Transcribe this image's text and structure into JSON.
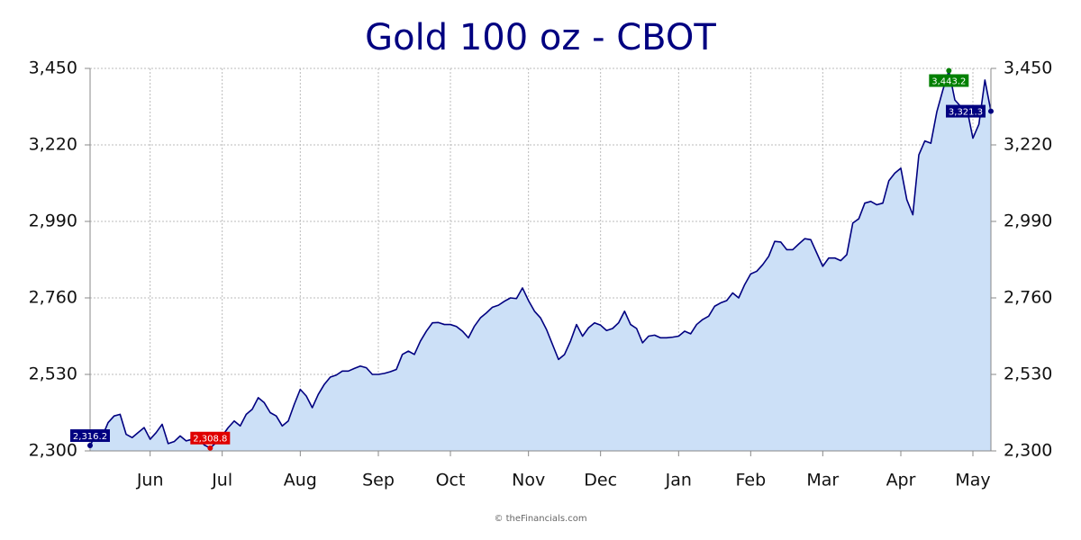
{
  "chart_data": {
    "type": "area",
    "title": "Gold 100 oz - CBOT",
    "source": "© theFinancials.com",
    "categories": [
      null,
      null,
      null,
      null,
      null,
      null,
      null,
      null,
      null,
      null,
      "Jun",
      null,
      null,
      null,
      null,
      null,
      null,
      null,
      null,
      null,
      null,
      null,
      "Jul",
      null,
      null,
      null,
      null,
      null,
      null,
      null,
      null,
      null,
      null,
      null,
      null,
      "Aug",
      null,
      null,
      null,
      null,
      null,
      null,
      null,
      null,
      null,
      null,
      null,
      null,
      "Sep",
      null,
      null,
      null,
      null,
      null,
      null,
      null,
      null,
      null,
      null,
      null,
      "Oct",
      null,
      null,
      null,
      null,
      null,
      null,
      null,
      null,
      null,
      null,
      null,
      null,
      "Nov",
      null,
      null,
      null,
      null,
      null,
      null,
      null,
      null,
      null,
      null,
      null,
      "Dec",
      null,
      null,
      null,
      null,
      null,
      null,
      null,
      null,
      null,
      null,
      null,
      null,
      "Jan",
      null,
      null,
      null,
      null,
      null,
      null,
      null,
      null,
      null,
      null,
      null,
      "Feb",
      null,
      null,
      null,
      null,
      null,
      null,
      null,
      null,
      null,
      null,
      null,
      "Mar",
      null,
      null,
      null,
      null,
      null,
      null,
      null,
      null,
      null,
      null,
      null,
      null,
      "Apr",
      null,
      null,
      null,
      null,
      null,
      null,
      null,
      null,
      null,
      null,
      null,
      "May",
      null,
      null,
      null
    ],
    "values": [
      2316.2,
      2350,
      2342,
      2385,
      2405,
      2410,
      2350,
      2340,
      2355,
      2370,
      2335,
      2355,
      2380,
      2322,
      2328,
      2345,
      2330,
      2335,
      2340,
      2318,
      2308.8,
      2325,
      2345,
      2370,
      2390,
      2375,
      2410,
      2425,
      2460,
      2445,
      2415,
      2405,
      2375,
      2390,
      2440,
      2485,
      2465,
      2430,
      2470,
      2500,
      2522,
      2528,
      2540,
      2540,
      2548,
      2555,
      2550,
      2530,
      2530,
      2533,
      2538,
      2545,
      2590,
      2600,
      2590,
      2630,
      2660,
      2685,
      2686,
      2680,
      2680,
      2674,
      2660,
      2640,
      2675,
      2700,
      2715,
      2732,
      2738,
      2750,
      2760,
      2758,
      2790,
      2752,
      2720,
      2700,
      2665,
      2620,
      2575,
      2590,
      2630,
      2680,
      2645,
      2670,
      2685,
      2678,
      2662,
      2668,
      2685,
      2720,
      2680,
      2668,
      2625,
      2645,
      2648,
      2640,
      2640,
      2642,
      2645,
      2660,
      2652,
      2680,
      2695,
      2705,
      2735,
      2745,
      2752,
      2775,
      2760,
      2800,
      2832,
      2840,
      2860,
      2885,
      2930,
      2928,
      2905,
      2905,
      2922,
      2938,
      2935,
      2895,
      2855,
      2880,
      2880,
      2872,
      2890,
      2985,
      2998,
      3045,
      3050,
      3040,
      3045,
      3112,
      3135,
      3150,
      3055,
      3010,
      3190,
      3232,
      3225,
      3320,
      3385,
      3443.2,
      3355,
      3335,
      3330,
      3240,
      3282,
      3415,
      3321.3
    ],
    "value_labels": [
      "2,316.2",
      null,
      null,
      null,
      null,
      null,
      null,
      null,
      null,
      null,
      null,
      null,
      null,
      null,
      null,
      null,
      null,
      null,
      null,
      null,
      "2,308.8",
      null,
      null,
      null,
      null,
      null,
      null,
      null,
      null,
      null,
      null,
      null,
      null,
      null,
      null,
      null,
      null,
      null,
      null,
      null,
      null,
      null,
      null,
      null,
      null,
      null,
      null,
      null,
      null,
      null,
      null,
      null,
      null,
      null,
      null,
      null,
      null,
      null,
      null,
      null,
      null,
      null,
      null,
      null,
      null,
      null,
      null,
      null,
      null,
      null,
      null,
      null,
      null,
      null,
      null,
      null,
      null,
      null,
      null,
      null,
      null,
      null,
      null,
      null,
      null,
      null,
      null,
      null,
      null,
      null,
      null,
      null,
      null,
      null,
      null,
      null,
      null,
      null,
      null,
      null,
      null,
      null,
      null,
      null,
      null,
      null,
      null,
      null,
      null,
      null,
      null,
      null,
      null,
      null,
      null,
      null,
      null,
      null,
      null,
      null,
      null,
      null,
      null,
      null,
      null,
      null,
      null,
      null,
      null,
      null,
      null,
      null,
      null,
      null,
      null,
      null,
      null,
      null,
      null,
      null,
      null,
      null,
      null,
      "3,443.2",
      null,
      null,
      null,
      null,
      null,
      null,
      "3,321.3"
    ],
    "color": "#000080",
    "fill": "#cce0f7",
    "label_colors": {
      "high": "#008000",
      "low": "#e00000",
      "default": "#000080"
    },
    "ylim": [
      2300,
      3450
    ],
    "yticks": [
      {
        "value": 2300,
        "label": "2,300"
      },
      {
        "value": 2530,
        "label": "2,530"
      },
      {
        "value": 2760,
        "label": "2,760"
      },
      {
        "value": 2990,
        "label": "2,990"
      },
      {
        "value": 3220,
        "label": "3,220"
      },
      {
        "value": 3450,
        "label": "3,450"
      }
    ],
    "y2lim": [
      2300,
      3450
    ],
    "y2ticks": [
      {
        "value": 2300,
        "label": "2,300"
      },
      {
        "value": 2530,
        "label": "2,530"
      },
      {
        "value": 2760,
        "label": "2,760"
      },
      {
        "value": 2990,
        "label": "2,990"
      },
      {
        "value": 3220,
        "label": "3,220"
      },
      {
        "value": 3450,
        "label": "3,450"
      }
    ],
    "grid": true
  }
}
